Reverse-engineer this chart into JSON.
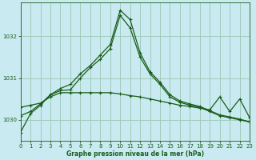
{
  "title": "Graphe pression niveau de la mer (hPa)",
  "bg_color": "#c8eaf0",
  "grid_color": "#a0ccbb",
  "line_color": "#1a5c1a",
  "xlim": [
    0,
    23
  ],
  "ylim": [
    1029.5,
    1032.8
  ],
  "yticks": [
    1030,
    1031,
    1032
  ],
  "xticks": [
    0,
    1,
    2,
    3,
    4,
    5,
    6,
    7,
    8,
    9,
    10,
    11,
    12,
    13,
    14,
    15,
    16,
    17,
    18,
    19,
    20,
    21,
    22,
    23
  ],
  "series1_x": [
    0,
    1,
    2,
    3,
    4,
    5,
    6,
    7,
    8,
    9,
    10,
    11,
    12,
    13,
    14,
    15,
    16,
    17,
    18,
    19,
    20,
    21,
    22,
    23
  ],
  "series1_y": [
    1029.7,
    1030.15,
    1030.35,
    1030.6,
    1030.75,
    1030.85,
    1031.1,
    1031.3,
    1031.55,
    1031.8,
    1032.62,
    1032.4,
    1031.6,
    1031.15,
    1030.9,
    1030.6,
    1030.45,
    1030.38,
    1030.32,
    1030.22,
    1030.12,
    1030.07,
    1030.02,
    1029.95
  ],
  "series2_x": [
    0,
    1,
    2,
    3,
    4,
    5,
    6,
    7,
    8,
    9,
    10,
    11,
    12,
    13,
    14,
    15,
    16,
    17,
    18,
    19,
    20,
    21,
    22,
    23
  ],
  "series2_y": [
    1030.3,
    1030.35,
    1030.4,
    1030.55,
    1030.65,
    1030.65,
    1030.65,
    1030.65,
    1030.65,
    1030.65,
    1030.62,
    1030.58,
    1030.55,
    1030.5,
    1030.45,
    1030.4,
    1030.35,
    1030.32,
    1030.28,
    1030.24,
    1030.55,
    1030.2,
    1030.5,
    1030.05
  ],
  "series3_x": [
    0,
    1,
    2,
    3,
    4,
    5,
    6,
    7,
    8,
    9,
    10,
    11,
    12,
    13,
    14,
    15,
    16,
    17,
    18,
    19,
    20,
    21,
    22,
    23
  ],
  "series3_y": [
    1030.1,
    1030.2,
    1030.38,
    1030.6,
    1030.7,
    1030.72,
    1031.0,
    1031.25,
    1031.45,
    1031.7,
    1032.5,
    1032.2,
    1031.5,
    1031.1,
    1030.85,
    1030.55,
    1030.42,
    1030.35,
    1030.3,
    1030.2,
    1030.1,
    1030.05,
    1030.0,
    1029.95
  ],
  "marker": "+",
  "markersize": 3,
  "linewidth": 0.9
}
